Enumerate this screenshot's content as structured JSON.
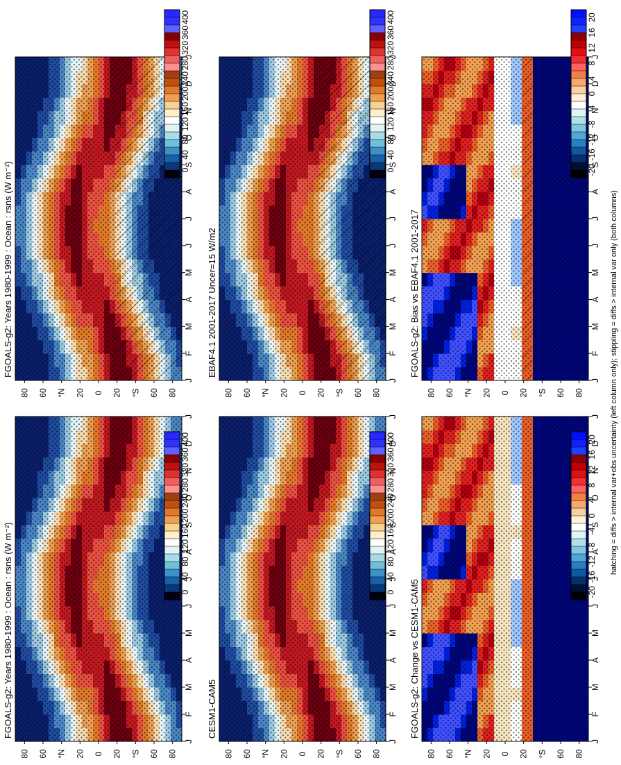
{
  "figure": {
    "footer": "hatching = diffs > internal var+obs uncertainty (left column only); stippling = diffs > internal var only (both columns)"
  },
  "chart_data": [
    {
      "type": "heatmap",
      "title": "FGOALS-g2: Years 1980-1999 : Ocean : rsns (W m⁻²)",
      "x_tick_labels": [
        "J",
        "F",
        "M",
        "A",
        "M",
        "J",
        "J",
        "A",
        "S",
        "O",
        "N",
        "D",
        "J"
      ],
      "y_tick_labels": [
        "80",
        "60",
        "°N",
        "20",
        "0",
        "20",
        "°S",
        "60",
        "80"
      ],
      "y_range": [
        -90,
        90
      ],
      "colorbar": [
        "400",
        "360",
        "320",
        "280",
        "240",
        "200",
        "160",
        "120",
        "80",
        "40",
        "0"
      ],
      "hatching": true,
      "stippling": true,
      "palette": "full"
    },
    {
      "type": "heatmap",
      "title": "FGOALS-g2: Years 1980-1999 : Ocean : rsns (W m⁻²)",
      "x_tick_labels": [
        "J",
        "F",
        "M",
        "A",
        "M",
        "J",
        "J",
        "A",
        "S",
        "O",
        "N",
        "D",
        "J"
      ],
      "y_tick_labels": [
        "80",
        "60",
        "°N",
        "20",
        "0",
        "20",
        "°S",
        "60",
        "80"
      ],
      "y_range": [
        -90,
        90
      ],
      "colorbar": [
        "400",
        "360",
        "320",
        "280",
        "240",
        "200",
        "160",
        "120",
        "80",
        "40",
        "0"
      ],
      "hatching": false,
      "stippling": true,
      "palette": "full"
    },
    {
      "type": "heatmap",
      "title": "EBAF4.1 2001-2017 Uncer=15 W/m2",
      "x_tick_labels": [
        "J",
        "F",
        "M",
        "A",
        "M",
        "J",
        "J",
        "A",
        "S",
        "O",
        "N",
        "D",
        "J"
      ],
      "y_tick_labels": [
        "80",
        "60",
        "°N",
        "20",
        "0",
        "20",
        "°S",
        "60",
        "80"
      ],
      "y_range": [
        -90,
        90
      ],
      "colorbar": [
        "400",
        "360",
        "320",
        "280",
        "240",
        "200",
        "160",
        "120",
        "80",
        "40",
        "0"
      ],
      "hatching": true,
      "stippling": true,
      "palette": "full"
    },
    {
      "type": "heatmap",
      "title": "CESM1-CAM5",
      "x_tick_labels": [
        "J",
        "F",
        "M",
        "A",
        "M",
        "J",
        "J",
        "A",
        "S",
        "O",
        "N",
        "D",
        "J"
      ],
      "y_tick_labels": [
        "80",
        "60",
        "°N",
        "20",
        "0",
        "20",
        "°S",
        "60",
        "80"
      ],
      "y_range": [
        -90,
        90
      ],
      "colorbar": [
        "400",
        "360",
        "320",
        "280",
        "240",
        "200",
        "160",
        "120",
        "80",
        "40",
        "0"
      ],
      "hatching": false,
      "stippling": true,
      "palette": "full"
    },
    {
      "type": "heatmap",
      "title": "FGOALS-g2: Bias vs EBAF4.1 2001-2017",
      "x_tick_labels": [
        "J",
        "F",
        "M",
        "A",
        "M",
        "J",
        "J",
        "A",
        "S",
        "O",
        "N",
        "D",
        "J"
      ],
      "y_tick_labels": [
        "80",
        "60",
        "°N",
        "20",
        "0",
        "20",
        "°S",
        "60",
        "80"
      ],
      "y_range": [
        -90,
        90
      ],
      "colorbar": [
        "20",
        "16",
        "12",
        "8",
        "4",
        "0",
        "-4",
        "-8",
        "-12",
        "-16",
        "-20"
      ],
      "hatching": true,
      "stippling": true,
      "palette": "diff"
    },
    {
      "type": "heatmap",
      "title": "FGOALS-g2: Change vs CESM1-CAM5",
      "x_tick_labels": [
        "J",
        "F",
        "M",
        "A",
        "M",
        "J",
        "J",
        "A",
        "S",
        "O",
        "N",
        "D",
        "J"
      ],
      "y_tick_labels": [
        "80",
        "60",
        "°N",
        "20",
        "0",
        "20",
        "°S",
        "60",
        "80"
      ],
      "y_range": [
        -90,
        90
      ],
      "colorbar": [
        "20",
        "16",
        "12",
        "8",
        "4",
        "0",
        "-4",
        "-8",
        "-12",
        "-16",
        "-20"
      ],
      "hatching": false,
      "stippling": true,
      "palette": "diff"
    }
  ],
  "colors": {
    "full": [
      "#0a1f6b",
      "#1f4ba0",
      "#4a86c4",
      "#9cc9e0",
      "#e6f3f7",
      "#f6dcb0",
      "#eca055",
      "#e07a28",
      "#e85040",
      "#c01820",
      "#6c0010"
    ],
    "diff": [
      "#00067a",
      "#0020e0",
      "#4050ff",
      "#a0c8ff",
      "#ffffff",
      "#f6e4c0",
      "#f0a050",
      "#e86028",
      "#e02020",
      "#b00010",
      "#600000"
    ],
    "fullbar": [
      "#2828ff",
      "#3030ff",
      "#6060ff",
      "#8a0000",
      "#c01010",
      "#e03030",
      "#f06060",
      "#ff9090",
      "#a04010",
      "#c05010",
      "#e07a28",
      "#f0a050",
      "#f8d090",
      "#fff0c8",
      "#ffffff",
      "#e0f4f4",
      "#a8dce8",
      "#70c0dc",
      "#3d90c8",
      "#1860a8",
      "#083878",
      "#000010"
    ],
    "diffbar": [
      "#0010ff",
      "#1020ff",
      "#2040ff",
      "#900000",
      "#c00000",
      "#e01010",
      "#f03030",
      "#ff6060",
      "#f08040",
      "#f8a868",
      "#fbd0a0",
      "#fff0d8",
      "#ffffff",
      "#e0f6f6",
      "#b0e0e8",
      "#80c8e0",
      "#50a8d8",
      "#2880c0",
      "#1058a0",
      "#083070",
      "#001030",
      "#000000"
    ]
  }
}
